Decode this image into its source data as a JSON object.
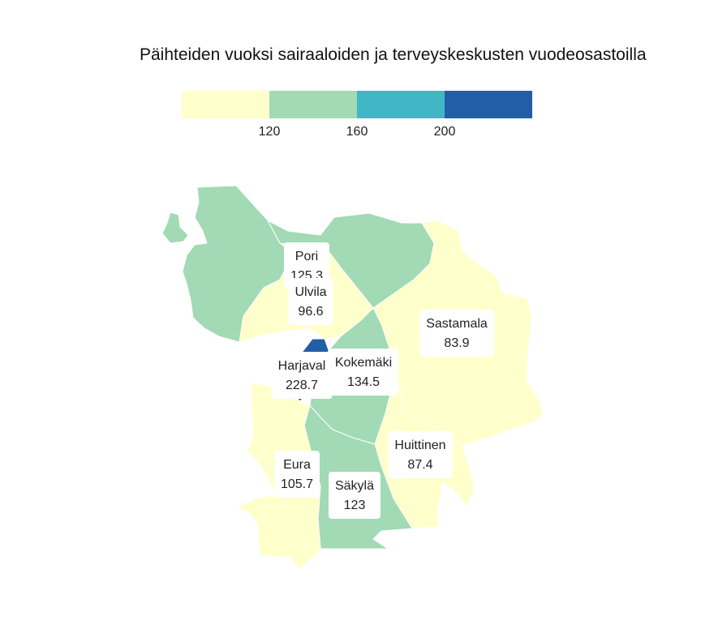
{
  "title": "Päihteiden vuoksi sairaaloiden ja terveyskeskusten vuodeosastoilla",
  "legend": {
    "colors": [
      "#ffffcc",
      "#a1dab4",
      "#41b6c4",
      "#225ea8"
    ],
    "ticks": [
      "120",
      "160",
      "200"
    ]
  },
  "regions": [
    {
      "key": "pori",
      "name": "Pori",
      "value": "125.3",
      "color": "#a1dab4"
    },
    {
      "key": "ulvila",
      "name": "Ulvila",
      "value": "96.6",
      "color": "#ffffcc"
    },
    {
      "key": "ne",
      "name": "",
      "value": "",
      "color": "#a1dab4"
    },
    {
      "key": "sastamala",
      "name": "Sastamala",
      "value": "83.9",
      "color": "#ffffcc"
    },
    {
      "key": "harjavalta",
      "name": "Harjaval",
      "value": "228.7",
      "color": "#225ea8"
    },
    {
      "key": "kokemaki",
      "name": "Kokemäki",
      "value": "134.5",
      "color": "#a1dab4"
    },
    {
      "key": "huittinen",
      "name": "Huittinen",
      "value": "87.4",
      "color": "#ffffcc"
    },
    {
      "key": "eura",
      "name": "Eura",
      "value": "105.7",
      "color": "#ffffcc"
    },
    {
      "key": "sakyla",
      "name": "Säkylä",
      "value": "123",
      "color": "#a1dab4"
    }
  ]
}
